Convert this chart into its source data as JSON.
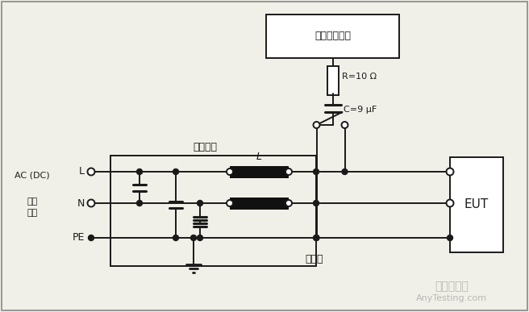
{
  "bg_color": "#f0f0e8",
  "line_color": "#1a1a1a",
  "labels": {
    "generator_box": "组合波发生器",
    "decoupling_network": "去耦网络",
    "R_label": "R=10 Ω",
    "C_label": "C=9 μF",
    "L_label": "L",
    "EUT_label": "EUT",
    "ref_ground": "参考地",
    "L_line": "L",
    "N_line": "N",
    "PE_line": "PE",
    "source_label1": "AC (DC)",
    "source_label2": "电源",
    "source_label3": "网络",
    "watermark1": "嘉峪检测网",
    "watermark2": "AnyTesting.com"
  },
  "figsize": [
    6.56,
    3.87
  ],
  "dpi": 100
}
